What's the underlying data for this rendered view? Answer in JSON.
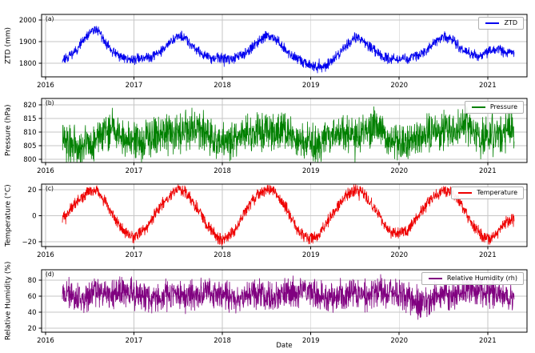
{
  "figure": {
    "xlabel": "Date",
    "background": "#ffffff",
    "axis_color": "#000000",
    "grid_color": "#c6c6c6",
    "tick_label_color": "#000000",
    "x_ticks": [
      2016,
      2017,
      2018,
      2019,
      2020,
      2021
    ],
    "xlim": [
      2015.955,
      2021.445
    ],
    "data_start": 2016.19,
    "data_end": 2021.3
  },
  "chart_data": [
    {
      "type": "line",
      "panel_letter": "(a)",
      "ylabel": "ZTD (mm)",
      "legend": "ZTD",
      "legend_position": "upper right",
      "grid": true,
      "color": "#0000ee",
      "ylim": [
        1737,
        2026
      ],
      "y_ticks": [
        1800,
        1900,
        2000
      ],
      "x_start": 2016.1667,
      "x_step": 0.0833333,
      "monthly_values": [
        1812,
        1830,
        1856,
        1900,
        1940,
        1962,
        1900,
        1858,
        1832,
        1820,
        1818,
        1822,
        1828,
        1840,
        1866,
        1898,
        1930,
        1916,
        1878,
        1848,
        1830,
        1820,
        1824,
        1818,
        1828,
        1844,
        1870,
        1904,
        1928,
        1922,
        1882,
        1846,
        1822,
        1804,
        1796,
        1776,
        1788,
        1818,
        1850,
        1888,
        1920,
        1912,
        1876,
        1848,
        1828,
        1820,
        1824,
        1820,
        1830,
        1844,
        1872,
        1900,
        1924,
        1916,
        1882,
        1854,
        1840,
        1834,
        1850,
        1866,
        1854,
        1848
      ],
      "daily_noise": 20,
      "seed": 11
    },
    {
      "type": "line",
      "panel_letter": "(b)",
      "ylabel": "Pressure (hPa)",
      "legend": "Pressure",
      "legend_position": "upper right",
      "grid": true,
      "color": "#008000",
      "ylim": [
        798.8,
        822.4
      ],
      "y_ticks": [
        800,
        805,
        810,
        815,
        820
      ],
      "x_start": 2016.1667,
      "x_step": 0.0833333,
      "monthly_values": [
        808,
        806,
        805,
        805,
        806,
        808,
        810,
        811,
        809,
        807,
        807,
        806,
        808,
        809,
        810,
        809,
        810,
        811,
        812,
        811,
        809,
        807,
        806,
        807,
        808,
        809,
        810,
        810,
        809,
        810,
        812,
        811,
        808,
        806,
        806,
        805,
        807,
        809,
        810,
        810,
        809,
        810,
        811,
        812,
        809,
        807,
        806,
        807,
        808,
        809,
        810,
        810,
        811,
        810,
        811,
        812,
        810,
        808,
        808,
        809,
        810,
        811
      ],
      "daily_noise": 6,
      "seed": 22
    },
    {
      "type": "line",
      "panel_letter": "(c)",
      "ylabel": "Temperature (°C)",
      "legend": "Temperature",
      "legend_position": "upper right",
      "grid": true,
      "color": "#ee0000",
      "ylim": [
        -23.8,
        24.2
      ],
      "y_ticks": [
        -20,
        0,
        20
      ],
      "x_start": 2016.1667,
      "x_step": 0.0833333,
      "monthly_values": [
        -5,
        3,
        9,
        15,
        19,
        18,
        12,
        2,
        -8,
        -14,
        -17,
        -13,
        -6,
        3,
        10,
        16,
        20,
        18,
        11,
        2,
        -8,
        -15,
        -19,
        -16,
        -9,
        2,
        11,
        17,
        20,
        19,
        12,
        2,
        -9,
        -16,
        -18,
        -15,
        -7,
        2,
        10,
        16,
        20,
        18,
        11,
        2,
        -8,
        -13,
        -13,
        -12,
        -6,
        3,
        10,
        16,
        20,
        18,
        12,
        3,
        -7,
        -14,
        -18,
        -15,
        -7,
        -3
      ],
      "daily_noise": 4,
      "seed": 33
    },
    {
      "type": "line",
      "panel_letter": "(d)",
      "ylabel": "Relative Humidity (%)",
      "legend": "Relative Humidity (rh)",
      "legend_position": "upper right",
      "grid": true,
      "color": "#800080",
      "ylim": [
        15,
        93
      ],
      "y_ticks": [
        20,
        40,
        60,
        80
      ],
      "x_start": 2016.1667,
      "x_step": 0.0833333,
      "monthly_values": [
        68,
        64,
        58,
        56,
        62,
        66,
        63,
        60,
        64,
        66,
        64,
        60,
        58,
        56,
        60,
        63,
        62,
        58,
        60,
        64,
        66,
        64,
        63,
        60,
        57,
        60,
        64,
        63,
        60,
        58,
        62,
        64,
        66,
        65,
        64,
        62,
        58,
        56,
        60,
        63,
        62,
        60,
        62,
        65,
        66,
        64,
        63,
        60,
        55,
        50,
        54,
        60,
        62,
        60,
        63,
        66,
        67,
        66,
        65,
        63,
        60,
        58
      ],
      "daily_noise": 16,
      "seed": 44
    }
  ]
}
